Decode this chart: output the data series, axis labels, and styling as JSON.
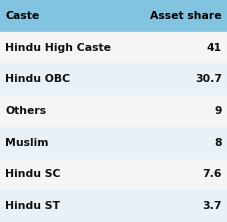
{
  "header": [
    "Caste",
    "Asset share"
  ],
  "rows": [
    [
      "Hindu High Caste",
      "41"
    ],
    [
      "Hindu OBC",
      "30.7"
    ],
    [
      "Others",
      "9"
    ],
    [
      "Muslim",
      "8"
    ],
    [
      "Hindu SC",
      "7.6"
    ],
    [
      "Hindu ST",
      "3.7"
    ]
  ],
  "header_bg": "#82c4e0",
  "row_bg_white": "#f5f5f5",
  "row_bg_blue": "#e8f1f7",
  "outer_bg": "#ffffff",
  "header_text_color": "#000000",
  "row_text_color": "#111111",
  "font_size": 7.8,
  "header_font_size": 7.8
}
